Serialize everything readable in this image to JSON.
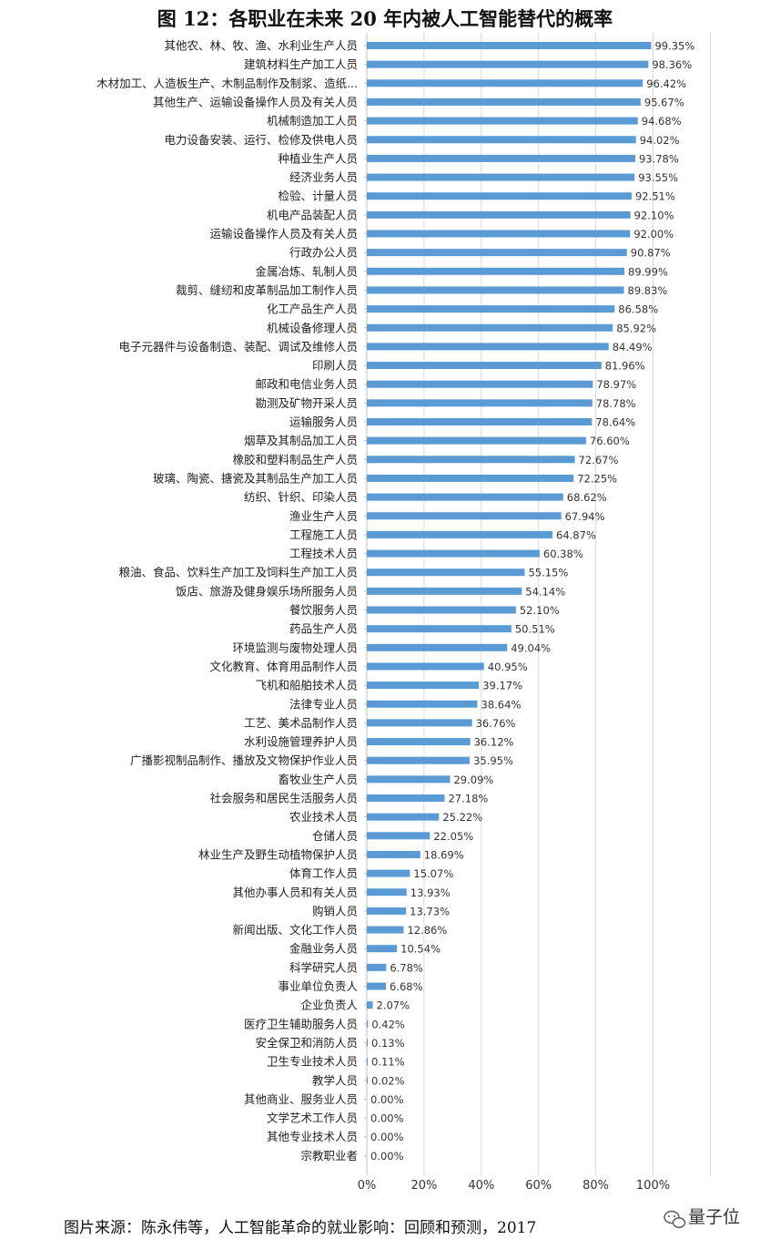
{
  "figure": {
    "title": "图 12：各职业在未来 20 年内被人工智能替代的概率",
    "source": "图片来源：陈永伟等，人工智能革命的就业影响：回顾和预测，2017",
    "watermark": "量子位"
  },
  "colors": {
    "bar": "#5b9bd5",
    "grid": "#d9d9d9",
    "text": "#222222"
  },
  "chart_data": {
    "type": "bar",
    "orientation": "horizontal",
    "title": "图 12：各职业在未来 20 年内被人工智能替代的概率",
    "xlabel": "",
    "ylabel": "",
    "xlim": [
      0,
      120
    ],
    "x_ticks": [
      "0%",
      "20%",
      "40%",
      "60%",
      "80%",
      "100%"
    ],
    "grid": true,
    "categories": [
      "其他农、林、牧、渔、水利业生产人员",
      "建筑材料生产加工人员",
      "木材加工、人造板生产、木制品制作及制浆、造纸...",
      "其他生产、运输设备操作人员及有关人员",
      "机械制造加工人员",
      "电力设备安装、运行、检修及供电人员",
      "种植业生产人员",
      "经济业务人员",
      "检验、计量人员",
      "机电产品装配人员",
      "运输设备操作人员及有关人员",
      "行政办公人员",
      "金属冶炼、轧制人员",
      "裁剪、缝纫和皮革制品加工制作人员",
      "化工产品生产人员",
      "机械设备修理人员",
      "电子元器件与设备制造、装配、调试及维修人员",
      "印刷人员",
      "邮政和电信业务人员",
      "勘测及矿物开采人员",
      "运输服务人员",
      "烟草及其制品加工人员",
      "橡胶和塑料制品生产人员",
      "玻璃、陶瓷、搪瓷及其制品生产加工人员",
      "纺织、针织、印染人员",
      "渔业生产人员",
      "工程施工人员",
      "工程技术人员",
      "粮油、食品、饮料生产加工及饲料生产加工人员",
      "饭店、旅游及健身娱乐场所服务人员",
      "餐饮服务人员",
      "药品生产人员",
      "环境监测与废物处理人员",
      "文化教育、体育用品制作人员",
      "飞机和船舶技术人员",
      "法律专业人员",
      "工艺、美术品制作人员",
      "水利设施管理养护人员",
      "广播影视制品制作、播放及文物保护作业人员",
      "畜牧业生产人员",
      "社会服务和居民生活服务人员",
      "农业技术人员",
      "仓储人员",
      "林业生产及野生动植物保护人员",
      "体育工作人员",
      "其他办事人员和有关人员",
      "购销人员",
      "新闻出版、文化工作人员",
      "金融业务人员",
      "科学研究人员",
      "事业单位负责人",
      "企业负责人",
      "医疗卫生辅助服务人员",
      "安全保卫和消防人员",
      "卫生专业技术人员",
      "教学人员",
      "其他商业、服务业人员",
      "文学艺术工作人员",
      "其他专业技术人员",
      "宗教职业者"
    ],
    "values": [
      99.35,
      98.36,
      96.42,
      95.67,
      94.68,
      94.02,
      93.78,
      93.55,
      92.51,
      92.1,
      92.0,
      90.87,
      89.99,
      89.83,
      86.58,
      85.92,
      84.49,
      81.96,
      78.97,
      78.78,
      78.64,
      76.6,
      72.67,
      72.25,
      68.62,
      67.94,
      64.87,
      60.38,
      55.15,
      54.14,
      52.1,
      50.51,
      49.04,
      40.95,
      39.17,
      38.64,
      36.76,
      36.12,
      35.95,
      29.09,
      27.18,
      25.22,
      22.05,
      18.69,
      15.07,
      13.93,
      13.73,
      12.86,
      10.54,
      6.78,
      6.68,
      2.07,
      0.42,
      0.13,
      0.11,
      0.02,
      0.0,
      0.0,
      0.0,
      0.0
    ],
    "value_labels": [
      "99.35%",
      "98.36%",
      "96.42%",
      "95.67%",
      "94.68%",
      "94.02%",
      "93.78%",
      "93.55%",
      "92.51%",
      "92.10%",
      "92.00%",
      "90.87%",
      "89.99%",
      "89.83%",
      "86.58%",
      "85.92%",
      "84.49%",
      "81.96%",
      "78.97%",
      "78.78%",
      "78.64%",
      "76.60%",
      "72.67%",
      "72.25%",
      "68.62%",
      "67.94%",
      "64.87%",
      "60.38%",
      "55.15%",
      "54.14%",
      "52.10%",
      "50.51%",
      "49.04%",
      "40.95%",
      "39.17%",
      "38.64%",
      "36.76%",
      "36.12%",
      "35.95%",
      "29.09%",
      "27.18%",
      "25.22%",
      "22.05%",
      "18.69%",
      "15.07%",
      "13.93%",
      "13.73%",
      "12.86%",
      "10.54%",
      "6.78%",
      "6.68%",
      "2.07%",
      "0.42%",
      "0.13%",
      "0.11%",
      "0.02%",
      "0.00%",
      "0.00%",
      "0.00%",
      "0.00%"
    ]
  }
}
